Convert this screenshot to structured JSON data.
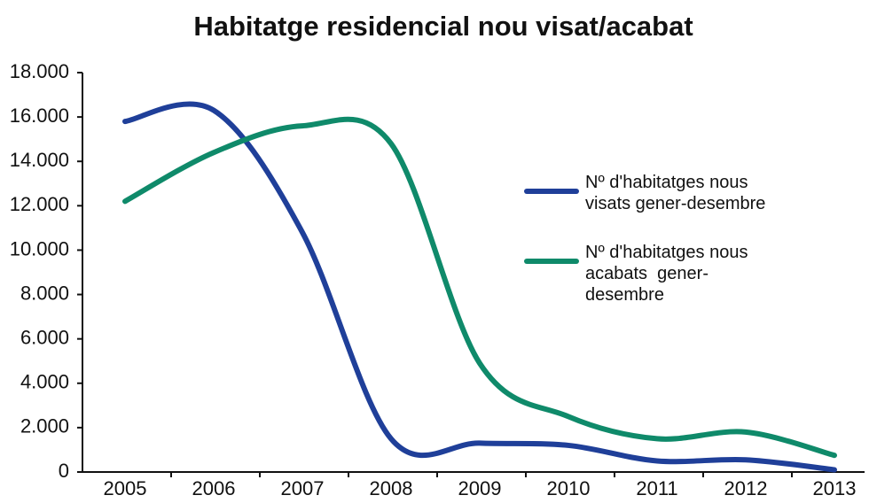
{
  "chart_data": {
    "type": "line",
    "title": "Habitatge residencial nou visat/acabat",
    "categories": [
      "2005",
      "2006",
      "2007",
      "2008",
      "2009",
      "2010",
      "2011",
      "2012",
      "2013"
    ],
    "series": [
      {
        "name": "Nº d'habitatges nous visats gener-desembre",
        "color": "#1f3f99",
        "values": [
          15800,
          16300,
          10800,
          1500,
          1300,
          1200,
          500,
          550,
          100
        ]
      },
      {
        "name": "Nº d'habitatges nous acabats  gener-desembre",
        "color": "#0f8a6a",
        "values": [
          12200,
          14400,
          15600,
          14800,
          4900,
          2500,
          1500,
          1800,
          750
        ]
      }
    ],
    "ylim": [
      0,
      18000
    ],
    "yticks": [
      0,
      {
        "value": 2000,
        "label": "2.000"
      },
      {
        "value": 4000,
        "label": "4.000"
      },
      {
        "value": 6000,
        "label": "6.000"
      },
      {
        "value": 8000,
        "label": "8.000"
      },
      {
        "value": 10000,
        "label": "10.000"
      },
      {
        "value": 12000,
        "label": "12.000"
      },
      {
        "value": 14000,
        "label": "14.000"
      },
      {
        "value": 16000,
        "label": "16.000"
      },
      {
        "value": 18000,
        "label": "18.000"
      }
    ],
    "grid": false
  }
}
